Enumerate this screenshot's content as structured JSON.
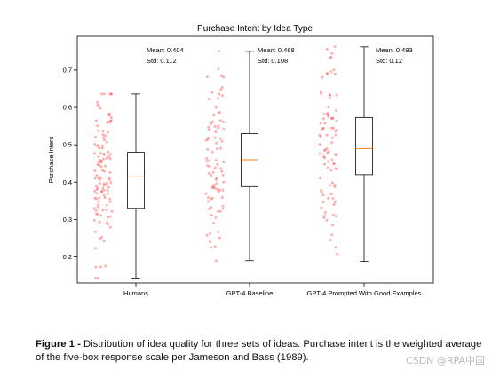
{
  "chart_data": {
    "type": "box",
    "title": "Purchase Intent by Idea Type",
    "xlabel": "",
    "ylabel": "Purchase Intent",
    "ylim": [
      0.13,
      0.79
    ],
    "yticks": [
      "0.2",
      "0.3",
      "0.4",
      "0.5",
      "0.6",
      "0.7"
    ],
    "grid": false,
    "categories": [
      "Humans",
      "GPT-4 Baseline",
      "GPT-4 Prompted With Good Examples"
    ],
    "boxes": [
      {
        "category": "Humans",
        "whisker_low": 0.143,
        "q1": 0.33,
        "median": 0.414,
        "q3": 0.48,
        "whisker_high": 0.636,
        "mean_label": "Mean: 0.404",
        "std_label": "Std: 0.112",
        "mean": 0.404,
        "std": 0.112
      },
      {
        "category": "GPT-4 Baseline",
        "whisker_low": 0.19,
        "q1": 0.388,
        "median": 0.46,
        "q3": 0.53,
        "whisker_high": 0.75,
        "mean_label": "Mean: 0.468",
        "std_label": "Std: 0.108",
        "mean": 0.468,
        "std": 0.108
      },
      {
        "category": "GPT-4 Prompted With Good Examples",
        "whisker_low": 0.188,
        "q1": 0.42,
        "median": 0.49,
        "q3": 0.573,
        "whisker_high": 0.762,
        "mean_label": "Mean: 0.493",
        "std_label": "Std: 0.12",
        "mean": 0.493,
        "std": 0.12
      }
    ],
    "jitter_points": "red semi-transparent strip of individual ratings beside each box",
    "colors": {
      "box": "#222222",
      "median": "#ff7f0e",
      "points": "#ff4d4d"
    }
  },
  "caption": {
    "label": "Figure 1 -",
    "text": "Distribution of idea quality for three sets of ideas. Purchase intent is the weighted average of the five-box response scale per Jameson and Bass (1989)."
  },
  "watermark": "CSDN @RPA中国"
}
